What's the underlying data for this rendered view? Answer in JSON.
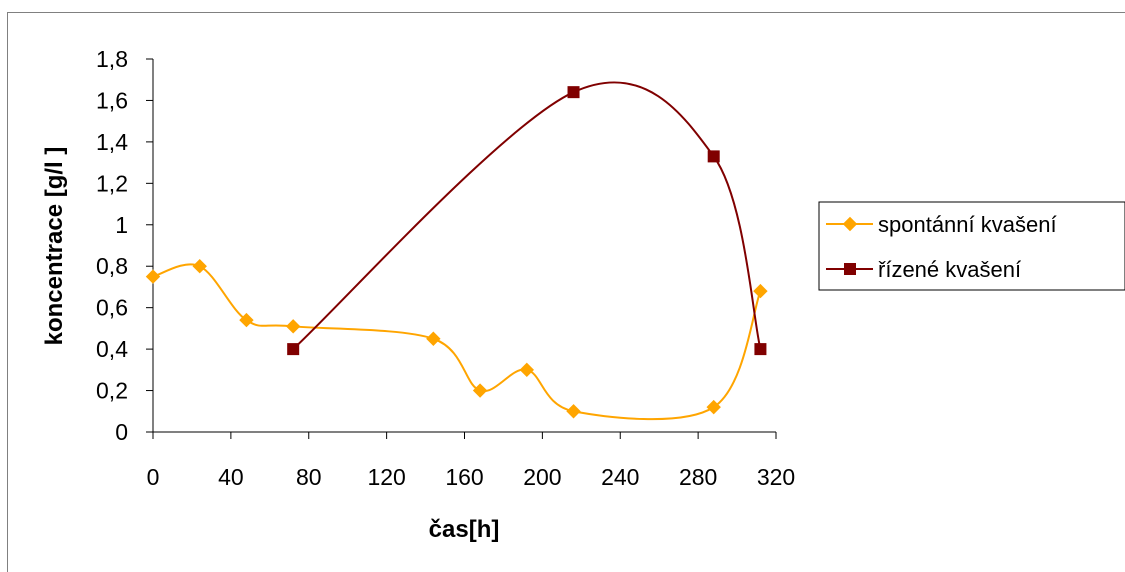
{
  "chart_data": {
    "type": "line",
    "xlabel": "čas[h]",
    "ylabel": "koncentrace [g/l ]",
    "xlim": [
      0,
      320
    ],
    "ylim": [
      0,
      1.8
    ],
    "x_ticks": [
      0,
      40,
      80,
      120,
      160,
      200,
      240,
      280,
      320
    ],
    "x_tick_labels": [
      "0",
      "40",
      "80",
      "120",
      "160",
      "200",
      "240",
      "280",
      "320"
    ],
    "y_ticks": [
      0,
      0.2,
      0.4,
      0.6,
      0.8,
      1.0,
      1.2,
      1.4,
      1.6,
      1.8
    ],
    "y_tick_labels": [
      "0",
      "0,2",
      "0,4",
      "0,6",
      "0,8",
      "1",
      "1,2",
      "1,4",
      "1,6",
      "1,8"
    ],
    "grid": false,
    "smoothed": true,
    "legend_position": "right",
    "series": [
      {
        "name": "spontánní kvašení",
        "color": "#ffa500",
        "marker": "diamond",
        "x": [
          0,
          24,
          48,
          72,
          144,
          168,
          192,
          216,
          288,
          312
        ],
        "y": [
          0.75,
          0.8,
          0.54,
          0.51,
          0.45,
          0.2,
          0.3,
          0.1,
          0.12,
          0.68
        ]
      },
      {
        "name": "řízené kvašení",
        "color": "#800000",
        "marker": "square",
        "x": [
          72,
          216,
          288,
          312
        ],
        "y": [
          0.4,
          1.64,
          1.33,
          0.4
        ]
      }
    ]
  }
}
